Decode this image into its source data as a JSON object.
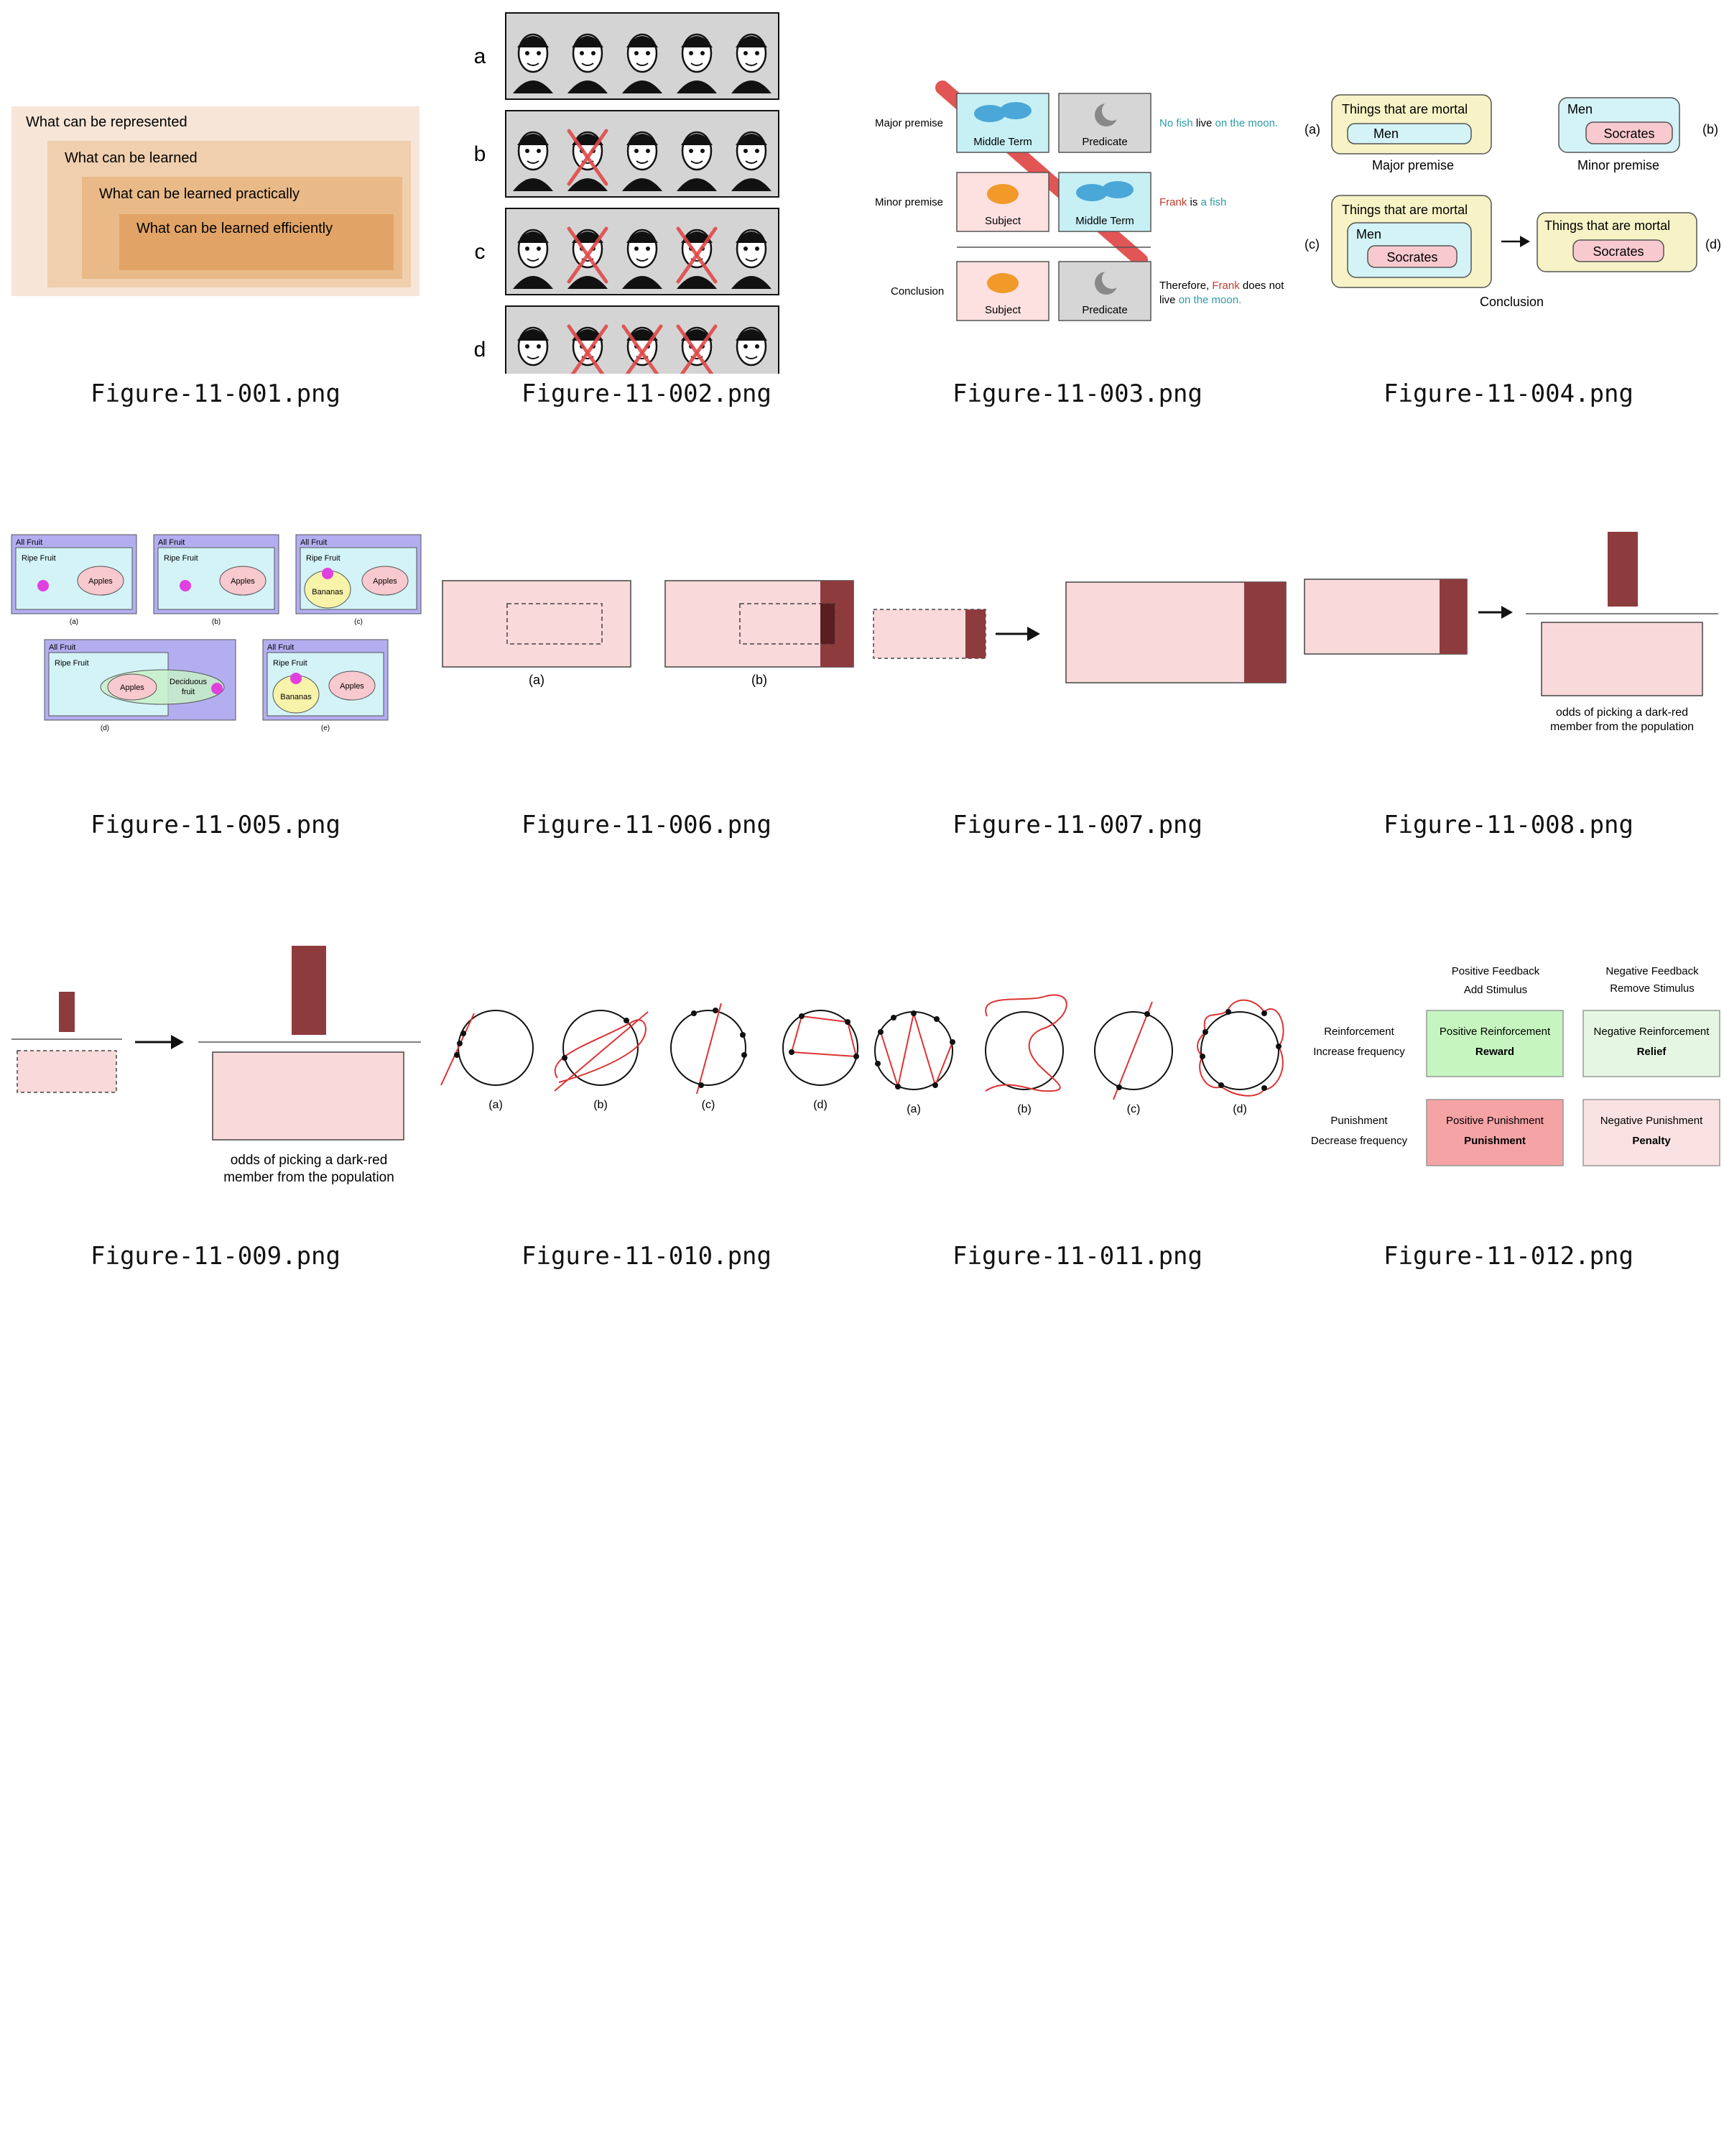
{
  "files": [
    "Figure-11-001.png",
    "Figure-11-002.png",
    "Figure-11-003.png",
    "Figure-11-004.png",
    "Figure-11-005.png",
    "Figure-11-006.png",
    "Figure-11-007.png",
    "Figure-11-008.png",
    "Figure-11-009.png",
    "Figure-11-010.png",
    "Figure-11-011.png",
    "Figure-11-012.png"
  ],
  "fig001": {
    "boxes": [
      "What can be represented",
      "What can be learned",
      "What can be learned practically",
      "What can be learned efficiently"
    ],
    "colors": [
      "#f7e6d8",
      "#f0cfae",
      "#e9ba88",
      "#e2a466"
    ]
  },
  "fig002": {
    "rows": [
      "a",
      "b",
      "c",
      "d"
    ]
  },
  "fig003": {
    "rows": [
      "Major premise",
      "Minor premise",
      "Conclusion"
    ],
    "major": {
      "left": "Middle Term",
      "right": "Predicate",
      "s1": "No fish",
      "s2": " live ",
      "s3": "on the moon."
    },
    "minor": {
      "left": "Subject",
      "right": "Middle Term",
      "s1": "Frank",
      "s2": " is ",
      "s3": "a fish"
    },
    "conclusion": {
      "left": "Subject",
      "right": "Predicate",
      "s1": "Therefore, ",
      "s2": "Frank",
      "s3": " does not",
      "s4": "live ",
      "s5": "on the moon."
    }
  },
  "fig004": {
    "mortal": "Things that are mortal",
    "men": "Men",
    "socrates": "Socrates",
    "major": "Major premise",
    "minor": "Minor premise",
    "conclusion": "Conclusion",
    "a": "(a)",
    "b": "(b)",
    "c": "(c)",
    "d": "(d)"
  },
  "fig005": {
    "all": "All Fruit",
    "ripe": "Ripe Fruit",
    "apples": "Apples",
    "bananas": "Bananas",
    "deciduous1": "Deciduous",
    "deciduous2": "fruit",
    "a": "(a)",
    "b": "(b)",
    "c": "(c)",
    "d": "(d)",
    "e": "(e)"
  },
  "fig006": {
    "a": "(a)",
    "b": "(b)"
  },
  "fig008": {
    "caption1": "odds of picking a dark-red",
    "caption2": "member from the population"
  },
  "fig009": {
    "caption1": "odds of picking a dark-red",
    "caption2": "member from the population"
  },
  "fig010": {
    "a": "(a)",
    "b": "(b)",
    "c": "(c)",
    "d": "(d)"
  },
  "fig011": {
    "a": "(a)",
    "b": "(b)",
    "c": "(c)",
    "d": "(d)"
  },
  "fig012": {
    "posfb": "Positive Feedback",
    "addstim": "Add Stimulus",
    "negfb": "Negative Feedback",
    "remstim": "Remove Stimulus",
    "reinf": "Reinforcement",
    "incfreq": "Increase frequency",
    "pun": "Punishment",
    "decfreq": "Decrease frequency",
    "posreinf": "Positive Reinforcement",
    "reward": "Reward",
    "negreinf": "Negative Reinforcement",
    "relief": "Relief",
    "pospun": "Positive Punishment",
    "punishment": "Punishment",
    "negpun": "Negative Punishment",
    "penalty": "Penalty"
  }
}
